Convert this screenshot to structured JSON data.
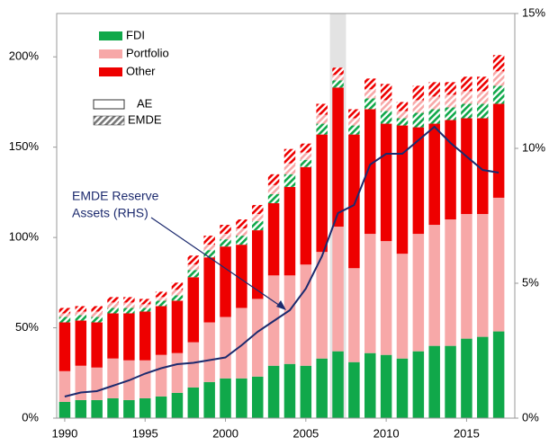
{
  "chart_data": {
    "type": "stacked-bar-line",
    "x": [
      1990,
      1991,
      1992,
      1993,
      1994,
      1995,
      1996,
      1997,
      1998,
      1999,
      2000,
      2001,
      2002,
      2003,
      2004,
      2005,
      2006,
      2007,
      2008,
      2009,
      2010,
      2011,
      2012,
      2013,
      2014,
      2015,
      2016,
      2017
    ],
    "xlim": [
      1989.5,
      2018
    ],
    "xticks": [
      1990,
      1995,
      2000,
      2005,
      2010,
      2015
    ],
    "ylim": [
      0,
      224
    ],
    "yticks": [
      {
        "value": 0,
        "label": "0%"
      },
      {
        "value": 50,
        "label": "50%"
      },
      {
        "value": 100,
        "label": "100%"
      },
      {
        "value": 150,
        "label": "150%"
      },
      {
        "value": 200,
        "label": "200%"
      }
    ],
    "y2lim": [
      0,
      15
    ],
    "y2ticks": [
      {
        "value": 0,
        "label": "0%"
      },
      {
        "value": 5,
        "label": "5%"
      },
      {
        "value": 10,
        "label": "10%"
      },
      {
        "value": 15,
        "label": "15%"
      }
    ],
    "shade": [
      2006.5,
      2007.5
    ],
    "groups": [
      "AE",
      "EMDE"
    ],
    "series": [
      {
        "name": "FDI",
        "color": "#10a84a",
        "values": [
          9,
          10,
          10,
          11,
          10,
          11,
          12,
          14,
          17,
          20,
          22,
          22,
          23,
          29,
          30,
          29,
          33,
          37,
          31,
          36,
          35,
          33,
          37,
          40,
          40,
          44,
          45,
          48
        ],
        "emde_values": [
          3,
          3,
          3,
          3,
          3,
          2,
          3,
          3,
          4,
          4,
          4,
          5,
          5,
          5,
          7,
          4,
          6,
          4,
          5,
          6,
          7,
          4,
          8,
          8,
          7,
          8,
          8,
          10
        ]
      },
      {
        "name": "Portfolio",
        "color": "#f7a8a8",
        "values": [
          17,
          19,
          18,
          22,
          22,
          21,
          23,
          22,
          25,
          33,
          34,
          39,
          43,
          50,
          49,
          56,
          59,
          69,
          52,
          66,
          63,
          58,
          65,
          67,
          70,
          69,
          68,
          74
        ],
        "emde_values": [
          2,
          2,
          3,
          3,
          3,
          2,
          2,
          3,
          3,
          3,
          3,
          4,
          4,
          5,
          6,
          4,
          5,
          3,
          4,
          5,
          6,
          4,
          7,
          7,
          7,
          7,
          7,
          8
        ]
      },
      {
        "name": "Other",
        "color": "#ee0000",
        "values": [
          27,
          25,
          25,
          25,
          26,
          27,
          27,
          29,
          36,
          36,
          39,
          35,
          38,
          40,
          49,
          54,
          65,
          77,
          74,
          69,
          65,
          71,
          59,
          56,
          55,
          53,
          53,
          52
        ],
        "emde_values": [
          3,
          3,
          3,
          3,
          3,
          3,
          3,
          4,
          5,
          5,
          5,
          5,
          5,
          6,
          8,
          5,
          6,
          4,
          5,
          6,
          9,
          5,
          8,
          8,
          7,
          8,
          8,
          9
        ]
      }
    ],
    "line": {
      "color": "#1c2a6e",
      "axis": "y2",
      "values": [
        0.8,
        0.95,
        1.0,
        1.2,
        1.4,
        1.65,
        1.85,
        2.0,
        2.05,
        2.15,
        2.25,
        2.7,
        3.2,
        3.6,
        4.0,
        4.8,
        6.0,
        7.6,
        7.9,
        9.4,
        9.8,
        9.8,
        10.3,
        10.8,
        10.2,
        9.7,
        9.2,
        9.1
      ]
    },
    "annotation": [
      "EMDE Reserve",
      "Assets (RHS)"
    ]
  }
}
